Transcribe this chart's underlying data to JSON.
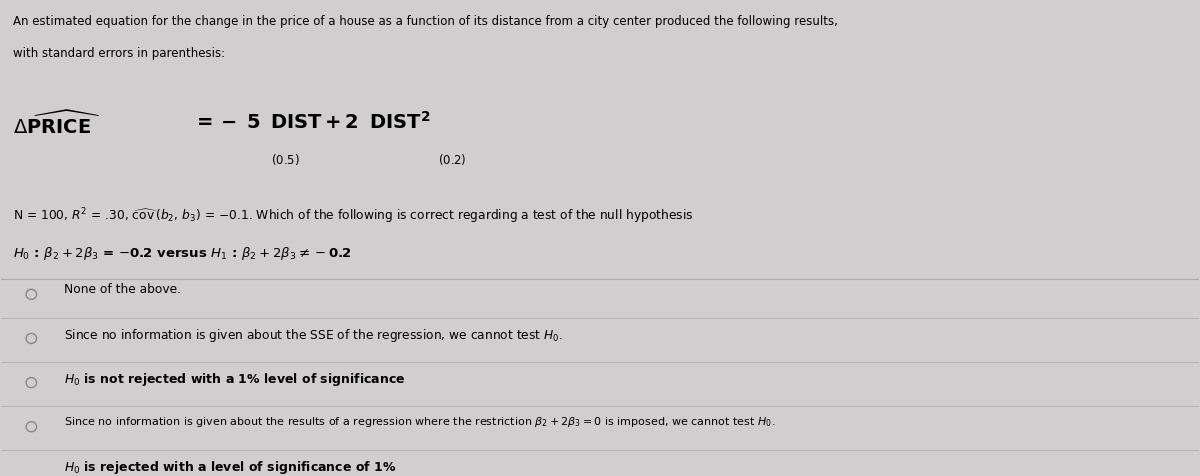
{
  "bg_color": "#d0cece",
  "text_color": "#000000",
  "title_line1": "An estimated equation for the change in the price of a house as a function of its distance from a city center produced the following results,",
  "title_line2": "with standard errors in parenthesis:",
  "divider_color": "#aaaaaa",
  "circle_color": "#888888",
  "options": [
    "None of the above.",
    "Since no information is given about the SSE of the regression, we cannot test $H_0$.",
    "$H_0$ is not rejected with a 1% level of significance",
    "Since no information is given about the results of a regression where the restriction $\\beta_2 + 2\\beta_3 = 0$ is imposed, we cannot test $H_0$.",
    "$H_0$ is rejected with a level of significance of 1%"
  ],
  "option_bold": [
    false,
    false,
    true,
    false,
    true
  ],
  "option_fontsize": [
    8.8,
    8.8,
    9.0,
    8.0,
    9.0
  ]
}
